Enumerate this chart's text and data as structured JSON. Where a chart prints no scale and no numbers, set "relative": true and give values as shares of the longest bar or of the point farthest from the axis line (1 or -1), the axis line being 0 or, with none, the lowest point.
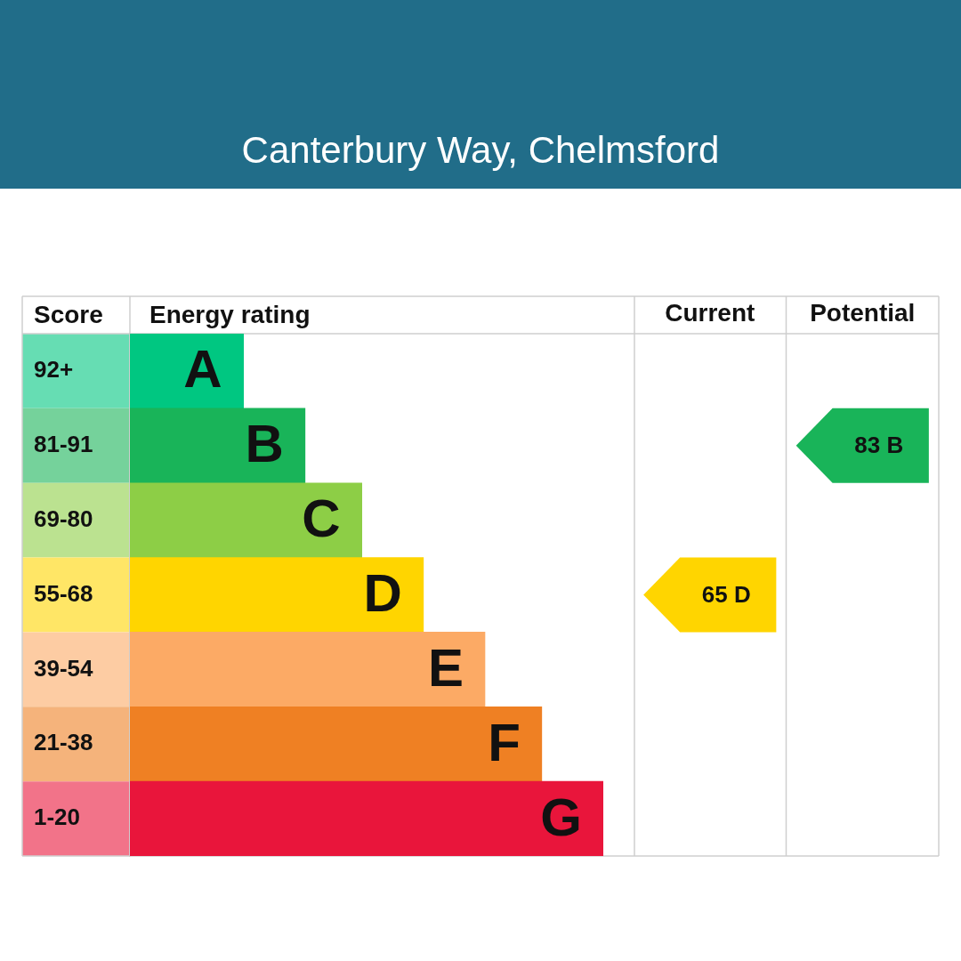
{
  "chart_data": [
    {
      "type": "bar",
      "orientation": "horizontal",
      "relative": true,
      "title": "Canterbury Way, Chelmsford",
      "ylabel": "Score",
      "xlabel": "Energy rating",
      "categories": [
        "92+",
        "81-91",
        "69-80",
        "55-68",
        "39-54",
        "21-38",
        "1-20"
      ],
      "values": [
        0.24,
        0.37,
        0.49,
        0.62,
        0.75,
        0.87,
        1
      ],
      "colors": [
        "#00c781",
        "#19b459",
        "#8dce46",
        "#ffd500",
        "#fcaa65",
        "#ef8023",
        "#e9153b"
      ],
      "annotations": [
        {
          "text": "A",
          "x": 0.24,
          "y": "92+"
        },
        {
          "text": "B",
          "x": 0.37,
          "y": "81-91"
        },
        {
          "text": "C",
          "x": 0.49,
          "y": "69-80"
        },
        {
          "text": "D",
          "x": 0.62,
          "y": "55-68"
        },
        {
          "text": "E",
          "x": 0.75,
          "y": "39-54"
        },
        {
          "text": "F",
          "x": 0.87,
          "y": "21-38"
        },
        {
          "text": "G",
          "x": 1,
          "y": "1-20"
        }
      ]
    },
    {
      "type": "heatmap",
      "categories": [
        "Current",
        "Potential"
      ],
      "y_categories": [
        "81-91",
        "55-68"
      ],
      "tick_labels": "x",
      "cells": [
        [
          null,
          83
        ],
        [
          65,
          null
        ]
      ],
      "cell_labels": [
        [
          null,
          "83 B"
        ],
        [
          "65 D",
          null
        ]
      ]
    }
  ]
}
